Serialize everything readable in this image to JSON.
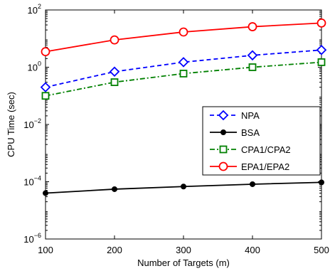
{
  "chart_data": {
    "type": "line",
    "xlabel": "Number of Targets (m)",
    "ylabel": "CPU Time (sec)",
    "xlim": [
      100,
      500
    ],
    "ylim": [
      1e-06,
      100
    ],
    "yscale": "log",
    "grid": false,
    "legend_position": "center-right",
    "x_ticks": [
      "100",
      "200",
      "300",
      "400",
      "500"
    ],
    "y_ticks": [
      {
        "value": 1e-06,
        "base": "10",
        "exp": "−6"
      },
      {
        "value": 0.0001,
        "base": "10",
        "exp": "−4"
      },
      {
        "value": 0.01,
        "base": "10",
        "exp": "−2"
      },
      {
        "value": 1,
        "base": "10",
        "exp": "0"
      },
      {
        "value": 100,
        "base": "10",
        "exp": "2"
      }
    ],
    "x": [
      100,
      200,
      300,
      400,
      500
    ],
    "series": [
      {
        "name": "NPA",
        "color": "#0000ff",
        "dash": "dashed",
        "marker": "diamond",
        "values": [
          0.2,
          0.7,
          1.5,
          2.6,
          4.0
        ]
      },
      {
        "name": "BSA",
        "color": "#000000",
        "dash": "solid",
        "marker": "dot",
        "values": [
          4e-05,
          5.5e-05,
          6.8e-05,
          8.2e-05,
          9.5e-05
        ]
      },
      {
        "name": "CPA1/CPA2",
        "color": "#008000",
        "dash": "dashdot",
        "marker": "square",
        "values": [
          0.1,
          0.3,
          0.6,
          1.0,
          1.5
        ]
      },
      {
        "name": "EPA1/EPA2",
        "color": "#ff0000",
        "dash": "solid",
        "marker": "circle",
        "values": [
          3.5,
          9.0,
          17.0,
          26.0,
          35.0
        ]
      }
    ]
  }
}
